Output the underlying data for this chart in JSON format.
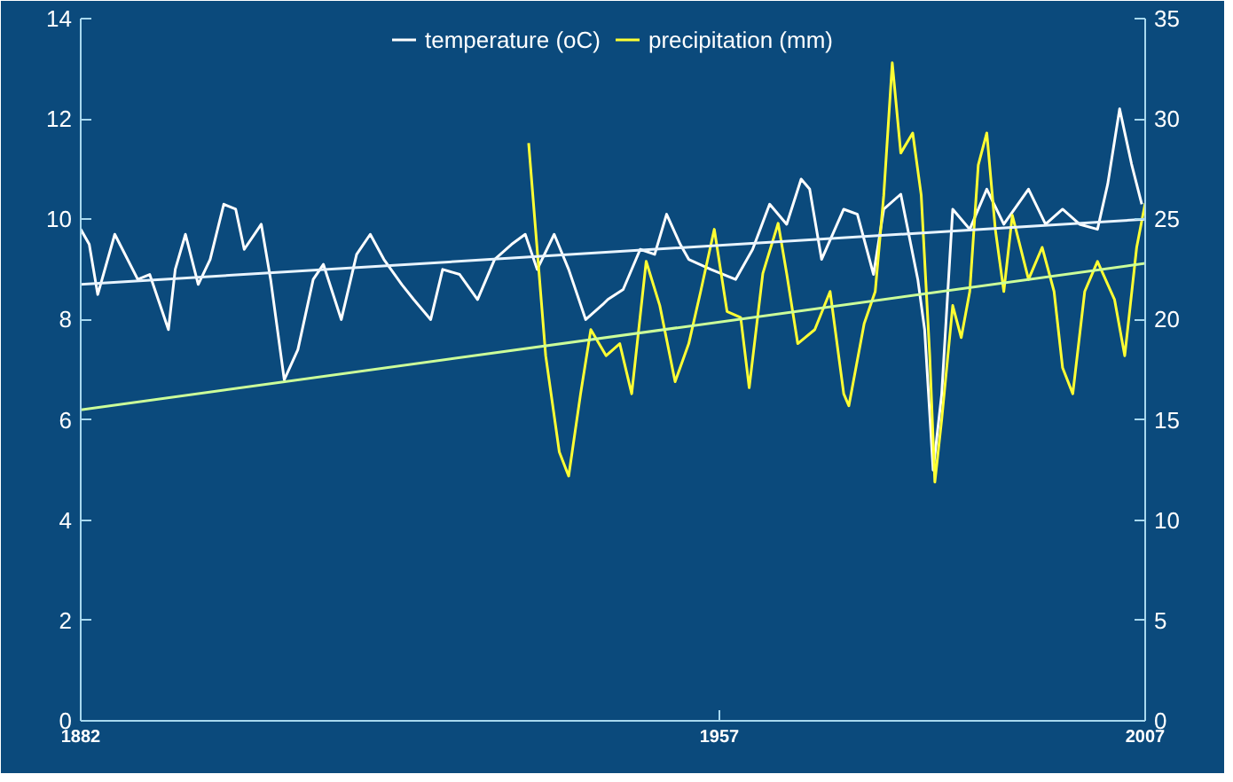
{
  "chart_data": {
    "type": "line",
    "legend": "top",
    "grid": false,
    "marker": "none",
    "line_style": "solid",
    "xlim": [
      1882,
      2007
    ],
    "xticks": [
      1882,
      1957,
      2007
    ],
    "ylim": [
      0,
      14
    ],
    "yticks": [
      0,
      2,
      4,
      6,
      8,
      10,
      12,
      14
    ],
    "y2lim": [
      0,
      35
    ],
    "y2ticks": [
      0,
      5,
      10,
      15,
      20,
      25,
      30,
      35
    ],
    "series": [
      {
        "name": "temperature (oC)",
        "color": "#ffffff",
        "x": [
          1882.0,
          1883.0,
          1884.0,
          1886.0,
          1888.7,
          1890.1,
          1892.3,
          1893.1,
          1894.3,
          1895.8,
          1897.2,
          1898.8,
          1900.2,
          1901.2,
          1903.2,
          1904.3,
          1905.9,
          1907.5,
          1909.3,
          1910.5,
          1912.6,
          1914.4,
          1916.0,
          1917.6,
          1919.7,
          1921.1,
          1923.1,
          1924.5,
          1926.5,
          1928.6,
          1930.6,
          1932.6,
          1934.2,
          1935.6,
          1937.6,
          1939.3,
          1941.3,
          1943.3,
          1943.9,
          1945.7,
          1947.7,
          1949.4,
          1950.8,
          1952.4,
          1953.4,
          1956.0,
          1958.9,
          1960.9,
          1962.9,
          1964.9,
          1966.6,
          1967.6,
          1969.0,
          1971.6,
          1973.2,
          1975.1,
          1976.3,
          1978.3,
          1980.3,
          1981.1,
          1982.1,
          1983.1,
          1984.4,
          1986.4,
          1988.4,
          1990.4,
          1993.3,
          1995.3,
          1997.3,
          1999.3,
          2001.4,
          2002.6,
          2004.0,
          2005.4,
          2006.6
        ],
        "values": [
          9.8,
          9.5,
          8.5,
          9.7,
          8.8,
          8.9,
          7.8,
          9.0,
          9.7,
          8.7,
          9.2,
          10.3,
          10.2,
          9.4,
          9.9,
          8.8,
          6.8,
          7.4,
          8.8,
          9.1,
          8.0,
          9.3,
          9.7,
          9.2,
          8.7,
          8.4,
          8.0,
          9.0,
          8.9,
          8.4,
          9.2,
          9.5,
          9.7,
          9.0,
          9.7,
          9.0,
          8.0,
          8.3,
          8.4,
          8.6,
          9.4,
          9.3,
          10.1,
          9.5,
          9.2,
          9.0,
          8.8,
          9.4,
          10.3,
          9.9,
          10.8,
          10.6,
          9.2,
          10.2,
          10.1,
          8.9,
          10.2,
          10.5,
          8.8,
          7.8,
          5.0,
          6.5,
          10.2,
          9.8,
          10.6,
          9.9,
          10.6,
          9.9,
          10.2,
          9.9,
          9.8,
          10.7,
          12.2,
          11.1,
          10.3
        ]
      },
      {
        "name": "precipitation (mm)",
        "color": "#ffff33",
        "axis": "y2",
        "x": [
          1934.6,
          1936.6,
          1938.2,
          1939.3,
          1940.7,
          1941.9,
          1943.7,
          1945.3,
          1946.7,
          1948.4,
          1950.0,
          1951.8,
          1953.4,
          1954.8,
          1956.4,
          1957.9,
          1959.5,
          1960.5,
          1962.1,
          1963.9,
          1964.9,
          1966.2,
          1968.2,
          1970.0,
          1971.6,
          1972.2,
          1974.0,
          1975.3,
          1976.3,
          1977.3,
          1978.3,
          1979.7,
          1980.7,
          1981.7,
          1982.3,
          1983.1,
          1984.4,
          1985.4,
          1986.4,
          1987.4,
          1988.4,
          1989.4,
          1990.4,
          1991.4,
          1993.3,
          1994.9,
          1996.3,
          1997.3,
          1998.5,
          1999.9,
          2001.4,
          2003.4,
          2004.6,
          2006.0,
          2007.0
        ],
        "values": [
          28.8,
          18.2,
          13.4,
          12.2,
          16.3,
          19.5,
          18.2,
          18.8,
          16.3,
          22.9,
          20.7,
          16.9,
          18.8,
          21.4,
          24.5,
          20.4,
          20.1,
          16.6,
          22.3,
          24.8,
          22.3,
          18.8,
          19.5,
          21.4,
          16.3,
          15.7,
          19.8,
          21.4,
          26.2,
          32.8,
          28.3,
          29.3,
          26.2,
          18.2,
          11.9,
          15.0,
          20.7,
          19.1,
          21.4,
          27.7,
          29.3,
          24.5,
          21.4,
          25.2,
          22.0,
          23.6,
          21.4,
          17.6,
          16.3,
          21.4,
          22.9,
          21.0,
          18.2,
          23.6,
          25.8
        ]
      },
      {
        "color": "#e8f4ff",
        "x": [
          1882,
          2007
        ],
        "values": [
          8.7,
          10.0
        ]
      },
      {
        "color": "#ccff99",
        "axis": "y2",
        "x": [
          1882,
          2007
        ],
        "values": [
          15.5,
          22.8
        ]
      }
    ]
  }
}
